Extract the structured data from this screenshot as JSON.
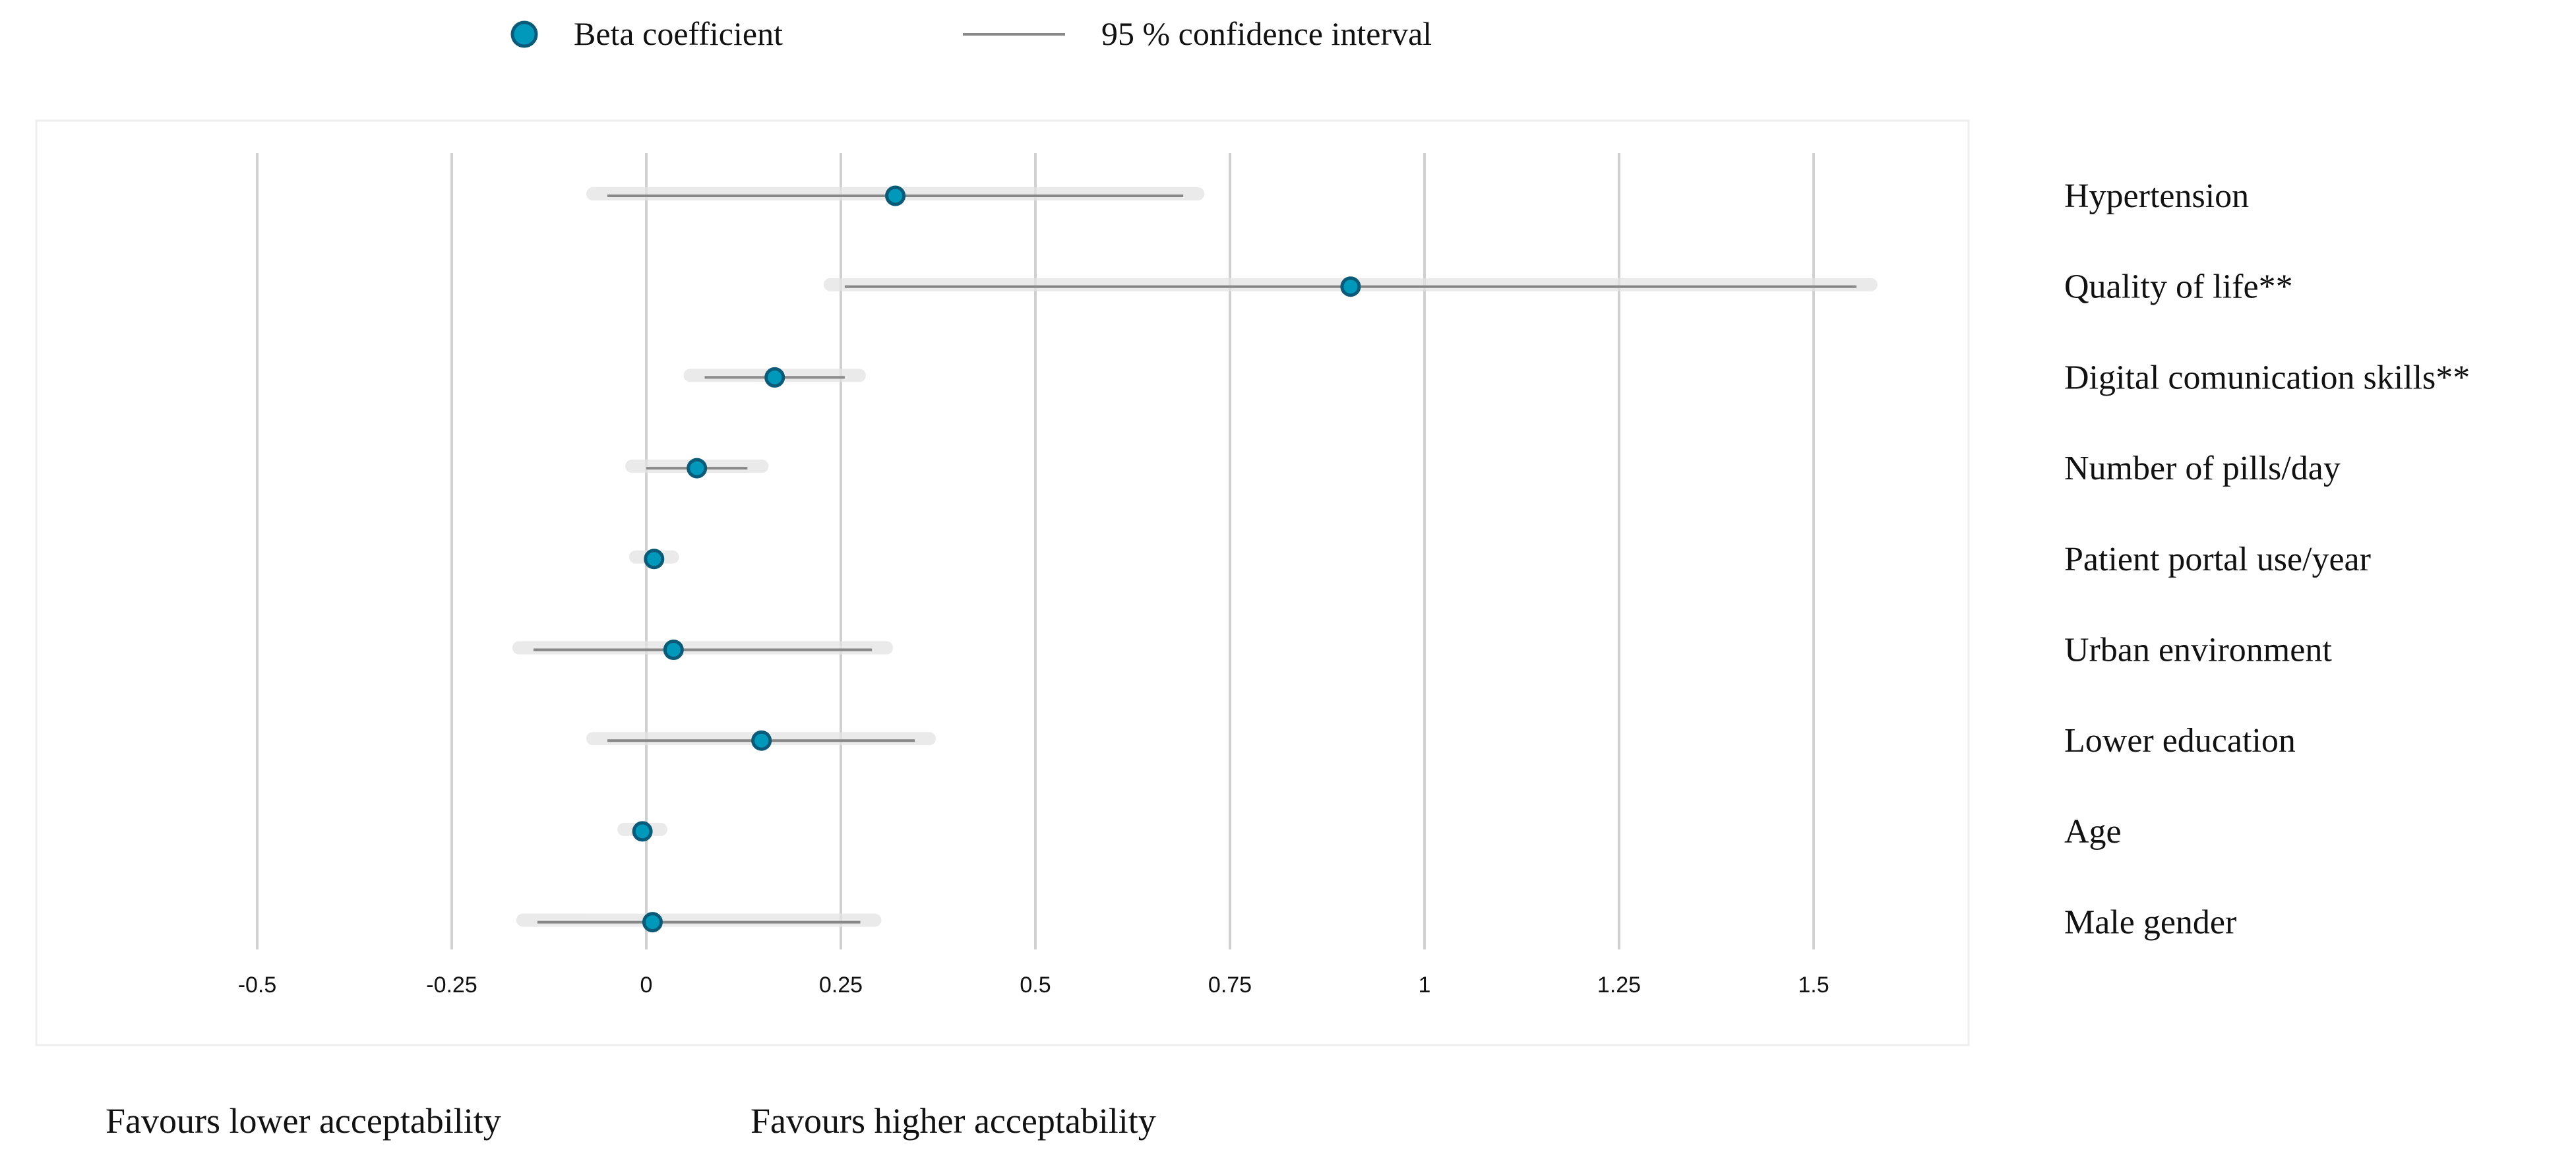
{
  "legend": {
    "point_label": "Beta coefficient",
    "ci_label": "95 % confidence interval"
  },
  "footer": {
    "left_label": "Favours lower acceptability",
    "right_label": "Favours higher acceptability"
  },
  "colors": {
    "point_fill": "#0099bb",
    "point_stroke": "#0b5a78",
    "ci_line": "#888888",
    "ci_shadow": "#e3e3e3",
    "grid": "#d0d0d0",
    "frame": "#eeeeee"
  },
  "chart_data": {
    "type": "scatter",
    "subtype": "forest-plot",
    "title": "",
    "xlabel": "",
    "ylabel": "",
    "xlim": [
      -0.5,
      1.5
    ],
    "x_ticks": [
      -0.5,
      -0.25,
      0,
      0.25,
      0.5,
      0.75,
      1,
      1.25,
      1.5
    ],
    "x_tick_labels": [
      "-0.5",
      "-0.25",
      "0",
      "0.25",
      "0.5",
      "0.75",
      "1",
      "1.25",
      "1.5"
    ],
    "grid": "vertical",
    "legend_position": "top",
    "rows": [
      {
        "label": "Hypertension",
        "beta": 0.32,
        "ci_low": -0.05,
        "ci_high": 0.69
      },
      {
        "label": "Quality of life**",
        "beta": 0.905,
        "ci_low": 0.255,
        "ci_high": 1.555
      },
      {
        "label": "Digital comunication skills**",
        "beta": 0.165,
        "ci_low": 0.075,
        "ci_high": 0.255
      },
      {
        "label": "Number of pills/day",
        "beta": 0.065,
        "ci_low": 0.0,
        "ci_high": 0.13
      },
      {
        "label": "Patient portal use/year",
        "beta": 0.01,
        "ci_low": 0.005,
        "ci_high": 0.015
      },
      {
        "label": "Urban environment",
        "beta": 0.035,
        "ci_low": -0.145,
        "ci_high": 0.29
      },
      {
        "label": "Lower education",
        "beta": 0.148,
        "ci_low": -0.05,
        "ci_high": 0.345
      },
      {
        "label": "Age",
        "beta": -0.005,
        "ci_low": -0.01,
        "ci_high": 0.0
      },
      {
        "label": "Male gender",
        "beta": 0.008,
        "ci_low": -0.14,
        "ci_high": 0.275
      }
    ]
  }
}
